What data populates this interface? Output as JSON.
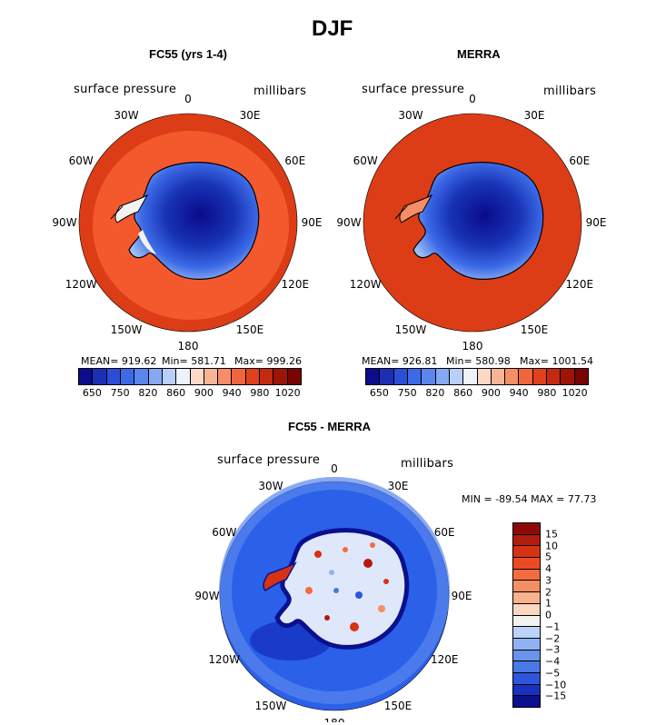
{
  "title": "DJF",
  "panels": [
    {
      "title": "FC55 (yrs 1-4)",
      "variable": "surface pressure",
      "units": "millibars",
      "stats": {
        "mean": "MEAN= 919.62",
        "min": "Min= 581.71",
        "max": "Max= 999.26"
      },
      "colors": {
        "ocean": "#dc3d16",
        "ring": "#f4592d"
      }
    },
    {
      "title": "MERRA",
      "variable": "surface pressure",
      "units": "millibars",
      "stats": {
        "mean": "MEAN= 926.81",
        "min": "Min= 580.98",
        "max": "Max= 1001.54"
      },
      "colors": {
        "ocean": "#dc3d16",
        "ring": "#dc3d16"
      }
    },
    {
      "title": "FC55 - MERRA",
      "variable": "surface pressure",
      "units": "millibars",
      "stats": {
        "range": "MIN = -89.54  MAX =   77.73"
      },
      "colors": {
        "ocean": "#2b60e8",
        "ring": "#3f7df0"
      }
    }
  ],
  "lon_labels": [
    "0",
    "30E",
    "60E",
    "90E",
    "120E",
    "150E",
    "180",
    "150W",
    "120W",
    "90W",
    "60W",
    "30W"
  ],
  "pressure_colorbar": {
    "tick_labels": [
      "650",
      "750",
      "820",
      "860",
      "900",
      "940",
      "980",
      "1020"
    ],
    "colors": [
      "#0c0c8c",
      "#1a2fb4",
      "#2a4fd6",
      "#3c6ae6",
      "#5a86ee",
      "#86a8f2",
      "#b8cff8",
      "#eef2fa",
      "#fbd9c6",
      "#f8b596",
      "#f58e66",
      "#f0653c",
      "#e0401c",
      "#c42a10",
      "#9e1508",
      "#780404"
    ]
  },
  "diff_colorbar": {
    "tick_labels": [
      "15",
      "10",
      "5",
      "4",
      "3",
      "2",
      "1",
      "0",
      "−1",
      "−2",
      "−3",
      "−4",
      "−5",
      "−10",
      "−15"
    ],
    "colors": [
      "#8e0a06",
      "#b21c0c",
      "#d83214",
      "#ee4a22",
      "#f36c40",
      "#f58e62",
      "#f8b28c",
      "#fbd7c2",
      "#f2f2f2",
      "#bcd2f6",
      "#90b2f2",
      "#6a94ec",
      "#4a78e6",
      "#2e56dc",
      "#1732c0",
      "#0a108e"
    ]
  },
  "chart_data": {
    "type": "map",
    "projection": "south-polar-stereographic",
    "season": "DJF",
    "pressure_levels": [
      650,
      750,
      820,
      860,
      900,
      940,
      980,
      1020
    ],
    "difference_levels": [
      -15,
      -10,
      -5,
      -4,
      -3,
      -2,
      -1,
      0,
      1,
      2,
      3,
      4,
      5,
      10,
      15
    ],
    "FC55": {
      "mean": 919.62,
      "min": 581.71,
      "max": 999.26
    },
    "MERRA": {
      "mean": 926.81,
      "min": 580.98,
      "max": 1001.54
    },
    "difference": {
      "min": -89.54,
      "max": 77.73
    }
  }
}
